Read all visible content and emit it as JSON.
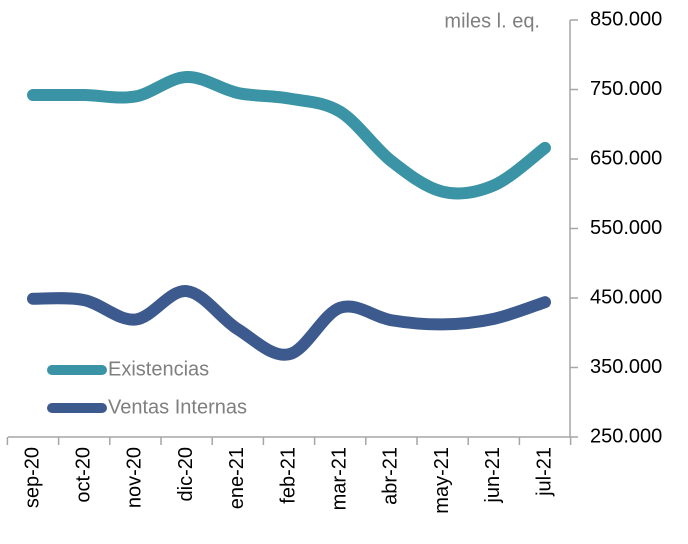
{
  "chart_data": {
    "type": "line",
    "unit_label": "miles l. eq.",
    "categories": [
      "sep-20",
      "oct-20",
      "nov-20",
      "dic-20",
      "ene-21",
      "feb-21",
      "mar-21",
      "abr-21",
      "may-21",
      "jun-21",
      "jul-21"
    ],
    "series": [
      {
        "name": "Existencias",
        "color": "#3a94a6",
        "values": [
          742000,
          742000,
          740000,
          768000,
          745000,
          737000,
          718000,
          647000,
          603000,
          612000,
          666000
        ]
      },
      {
        "name": "Ventas Internas",
        "color": "#3d5a8e",
        "values": [
          449000,
          447000,
          419000,
          460000,
          405000,
          369000,
          436000,
          418000,
          412000,
          420000,
          444000
        ]
      }
    ],
    "ylim": [
      250000,
      850000
    ],
    "yticks": [
      {
        "value": 250000,
        "label": "250.000"
      },
      {
        "value": 350000,
        "label": "350.000"
      },
      {
        "value": 450000,
        "label": "450.000"
      },
      {
        "value": 550000,
        "label": "550.000"
      },
      {
        "value": 650000,
        "label": "650.000"
      },
      {
        "value": 750000,
        "label": "750.000"
      },
      {
        "value": 850000,
        "label": "850.000"
      }
    ],
    "y_axis_side": "right",
    "legend_position": "lower left"
  }
}
